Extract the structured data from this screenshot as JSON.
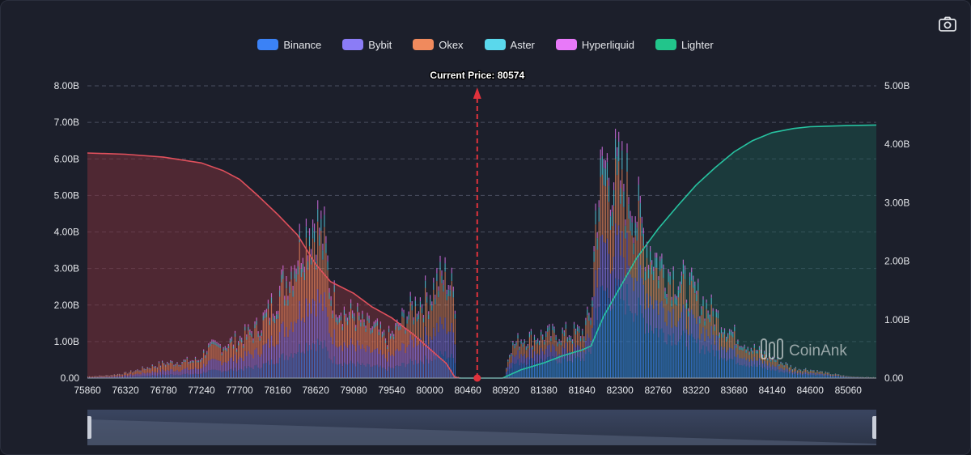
{
  "legend": [
    {
      "name": "Binance",
      "color": "#3b82f6"
    },
    {
      "name": "Bybit",
      "color": "#8b7cf6"
    },
    {
      "name": "Okex",
      "color": "#f08a5d"
    },
    {
      "name": "Aster",
      "color": "#5ad8ec"
    },
    {
      "name": "Hyperliquid",
      "color": "#e879f9"
    },
    {
      "name": "Lighter",
      "color": "#22c58b"
    }
  ],
  "icons": {
    "camera": "camera-icon"
  },
  "watermark": "CoinAnk",
  "chart_data": {
    "type": "bar",
    "current_price_label": "Current Price:  80574",
    "current_price": 80574,
    "x_range": [
      75860,
      85400
    ],
    "x_ticks": [
      75860,
      76320,
      76780,
      77240,
      77700,
      78160,
      78620,
      79080,
      79540,
      80000,
      80460,
      80920,
      81380,
      81840,
      82300,
      82760,
      83220,
      83680,
      84140,
      84600,
      85060
    ],
    "y_left": {
      "range": [
        0,
        8
      ],
      "unit": "B",
      "ticks": [
        "0.00",
        "1.00B",
        "2.00B",
        "3.00B",
        "4.00B",
        "5.00B",
        "6.00B",
        "7.00B",
        "8.00B"
      ]
    },
    "y_right": {
      "range": [
        0,
        5
      ],
      "unit": "B",
      "ticks": [
        "0.00",
        "1.00B",
        "2.00B",
        "3.00B",
        "4.00B",
        "5.00B"
      ]
    },
    "grid": true,
    "legend_position": "top-center",
    "bar_series": [
      "Binance",
      "Bybit",
      "Okex",
      "Aster",
      "Hyperliquid",
      "Lighter"
    ],
    "bar_profile": [
      [
        75860,
        0.05
      ],
      [
        76100,
        0.08
      ],
      [
        76320,
        0.15
      ],
      [
        76550,
        0.3
      ],
      [
        76780,
        0.45
      ],
      [
        77000,
        0.5
      ],
      [
        77200,
        0.55
      ],
      [
        77300,
        0.9
      ],
      [
        77500,
        1.0
      ],
      [
        77700,
        1.2
      ],
      [
        77900,
        1.5
      ],
      [
        78050,
        2.0
      ],
      [
        78160,
        2.6
      ],
      [
        78300,
        3.2
      ],
      [
        78450,
        4.2
      ],
      [
        78550,
        4.7
      ],
      [
        78620,
        4.8
      ],
      [
        78720,
        4.2
      ],
      [
        78800,
        2.6
      ],
      [
        78900,
        2.2
      ],
      [
        79000,
        1.9
      ],
      [
        79080,
        2.0
      ],
      [
        79200,
        1.6
      ],
      [
        79350,
        1.5
      ],
      [
        79450,
        1.2
      ],
      [
        79540,
        1.3
      ],
      [
        79700,
        1.9
      ],
      [
        79850,
        2.3
      ],
      [
        80000,
        2.6
      ],
      [
        80100,
        3.0
      ],
      [
        80200,
        3.1
      ],
      [
        80300,
        2.5
      ],
      [
        80320,
        0.05
      ],
      [
        80400,
        0.0
      ],
      [
        80900,
        0.0
      ],
      [
        80960,
        0.9
      ],
      [
        81100,
        1.2
      ],
      [
        81380,
        1.3
      ],
      [
        81600,
        1.35
      ],
      [
        81840,
        1.4
      ],
      [
        81950,
        2.0
      ],
      [
        82000,
        5.0
      ],
      [
        82100,
        6.4
      ],
      [
        82200,
        6.2
      ],
      [
        82300,
        6.0
      ],
      [
        82400,
        5.8
      ],
      [
        82500,
        5.0
      ],
      [
        82600,
        4.2
      ],
      [
        82760,
        3.5
      ],
      [
        83000,
        3.0
      ],
      [
        83220,
        2.5
      ],
      [
        83450,
        1.9
      ],
      [
        83680,
        1.3
      ],
      [
        83900,
        0.9
      ],
      [
        84140,
        0.6
      ],
      [
        84400,
        0.3
      ],
      [
        84600,
        0.25
      ],
      [
        84800,
        0.15
      ],
      [
        85060,
        0.05
      ],
      [
        85400,
        0.02
      ]
    ],
    "short_cumulative": [
      [
        75860,
        3.85
      ],
      [
        76320,
        3.83
      ],
      [
        76780,
        3.78
      ],
      [
        77240,
        3.68
      ],
      [
        77500,
        3.55
      ],
      [
        77700,
        3.4
      ],
      [
        77900,
        3.15
      ],
      [
        78160,
        2.8
      ],
      [
        78400,
        2.45
      ],
      [
        78620,
        1.95
      ],
      [
        78800,
        1.65
      ],
      [
        79080,
        1.45
      ],
      [
        79300,
        1.22
      ],
      [
        79540,
        1.03
      ],
      [
        79800,
        0.75
      ],
      [
        80000,
        0.5
      ],
      [
        80200,
        0.25
      ],
      [
        80300,
        0.02
      ],
      [
        80360,
        0.0
      ]
    ],
    "long_cumulative": [
      [
        80360,
        0.0
      ],
      [
        80880,
        0.0
      ],
      [
        81100,
        0.14
      ],
      [
        81380,
        0.26
      ],
      [
        81600,
        0.38
      ],
      [
        81840,
        0.48
      ],
      [
        81950,
        0.55
      ],
      [
        82100,
        1.05
      ],
      [
        82300,
        1.55
      ],
      [
        82500,
        2.05
      ],
      [
        82760,
        2.55
      ],
      [
        83000,
        2.95
      ],
      [
        83220,
        3.3
      ],
      [
        83450,
        3.6
      ],
      [
        83680,
        3.87
      ],
      [
        83900,
        4.06
      ],
      [
        84140,
        4.2
      ],
      [
        84400,
        4.27
      ],
      [
        84600,
        4.3
      ],
      [
        85060,
        4.32
      ],
      [
        85400,
        4.33
      ]
    ],
    "short_line_color": "#e0505c",
    "long_line_color": "#27c2a0",
    "marker_color": "#e0323c"
  }
}
